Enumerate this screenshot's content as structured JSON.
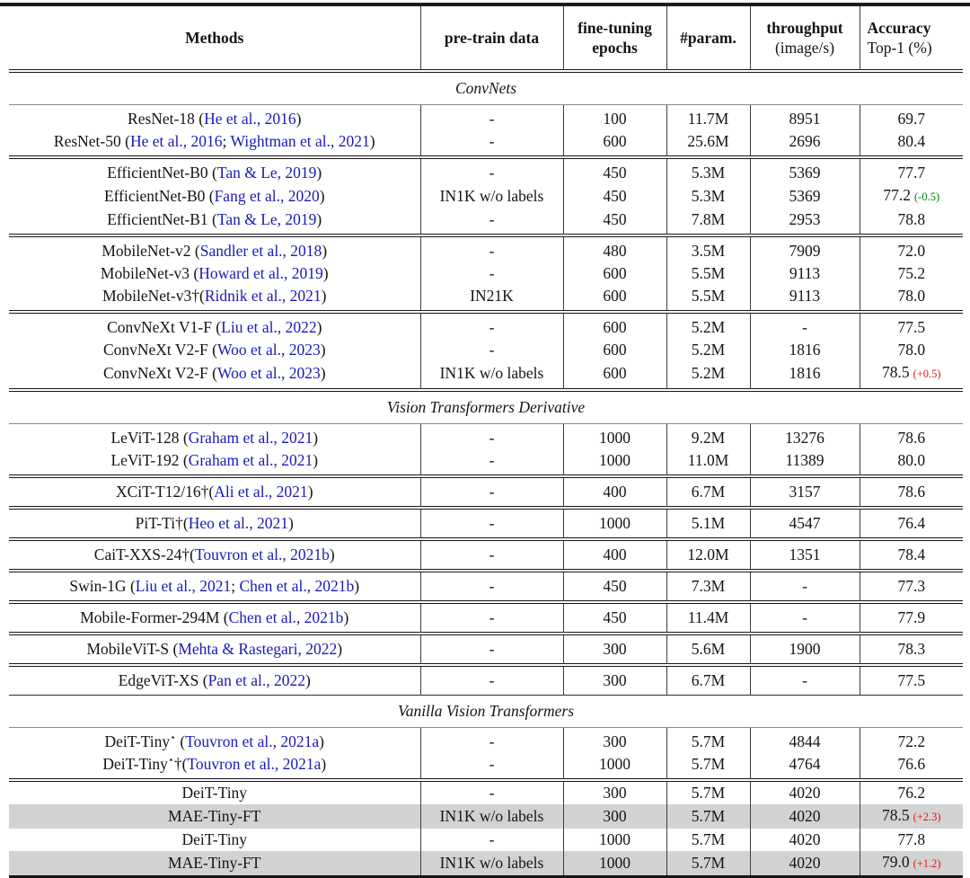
{
  "colors": {
    "citation": "#1a1ab8",
    "delta_green": "#008000",
    "delta_red": "#ee1111",
    "highlight": "#d2d2d2",
    "rule": "#151515"
  },
  "header": {
    "cols": [
      {
        "lines": [
          {
            "t": "Methods",
            "b": 1
          }
        ]
      },
      {
        "lines": [
          {
            "t": "pre-train data",
            "b": 1
          }
        ]
      },
      {
        "lines": [
          {
            "t": "fine-tuning",
            "b": 1
          },
          {
            "t": "epochs",
            "b": 1
          }
        ]
      },
      {
        "lines": [
          {
            "t": "#param.",
            "b": 1
          }
        ]
      },
      {
        "lines": [
          {
            "t": "throughput",
            "b": 1
          },
          {
            "t": "(image/s)",
            "b": 0
          }
        ]
      },
      {
        "lines": [
          {
            "t": "Accuracy",
            "b": 1
          },
          {
            "t": "Top-1 (%)",
            "b": 0
          }
        ],
        "align": "left"
      }
    ]
  },
  "sections": [
    {
      "title": "ConvNets",
      "rule_above": "double",
      "groups": [
        {
          "rows": [
            {
              "m": [
                {
                  "t": "ResNet-18 ("
                },
                {
                  "t": "He et al., 2016",
                  "b": 1
                },
                {
                  "t": ")"
                }
              ],
              "p": "-",
              "e": "100",
              "pa": "11.7M",
              "th": "8951",
              "a": "69.7"
            },
            {
              "m": [
                {
                  "t": "ResNet-50 ("
                },
                {
                  "t": "He et al., 2016",
                  "b": 1
                },
                {
                  "t": "; "
                },
                {
                  "t": "Wightman et al., 2021",
                  "b": 1
                },
                {
                  "t": ")"
                }
              ],
              "p": "-",
              "e": "600",
              "pa": "25.6M",
              "th": "2696",
              "a": "80.4"
            }
          ]
        },
        {
          "rows": [
            {
              "m": [
                {
                  "t": "EfficientNet-B0 ("
                },
                {
                  "t": "Tan & Le, 2019",
                  "b": 1
                },
                {
                  "t": ")"
                }
              ],
              "p": "-",
              "e": "450",
              "pa": "5.3M",
              "th": "5369",
              "a": "77.7"
            },
            {
              "m": [
                {
                  "t": "EfficientNet-B0 ("
                },
                {
                  "t": "Fang et al., 2020",
                  "b": 1
                },
                {
                  "t": ")"
                }
              ],
              "p": "IN1K w/o labels",
              "e": "450",
              "pa": "5.3M",
              "th": "5369",
              "a": "77.2",
              "d": {
                "t": "(-0.5)",
                "c": "green"
              }
            },
            {
              "m": [
                {
                  "t": "EfficientNet-B1 ("
                },
                {
                  "t": "Tan & Le, 2019",
                  "b": 1
                },
                {
                  "t": ")"
                }
              ],
              "p": "-",
              "e": "450",
              "pa": "7.8M",
              "th": "2953",
              "a": "78.8"
            }
          ]
        },
        {
          "rows": [
            {
              "m": [
                {
                  "t": "MobileNet-v2 ("
                },
                {
                  "t": "Sandler et al., 2018",
                  "b": 1
                },
                {
                  "t": ")"
                }
              ],
              "p": "-",
              "e": "480",
              "pa": "3.5M",
              "th": "7909",
              "a": "72.0"
            },
            {
              "m": [
                {
                  "t": "MobileNet-v3 ("
                },
                {
                  "t": "Howard et al., 2019",
                  "b": 1
                },
                {
                  "t": ")"
                }
              ],
              "p": "-",
              "e": "600",
              "pa": "5.5M",
              "th": "9113",
              "a": "75.2"
            },
            {
              "m": [
                {
                  "t": "MobileNet-v3†("
                },
                {
                  "t": "Ridnik et al., 2021",
                  "b": 1
                },
                {
                  "t": ")"
                }
              ],
              "p": "IN21K",
              "e": "600",
              "pa": "5.5M",
              "th": "9113",
              "a": "78.0"
            }
          ]
        },
        {
          "rows": [
            {
              "m": [
                {
                  "t": "ConvNeXt V1-F ("
                },
                {
                  "t": "Liu et al., 2022",
                  "b": 1
                },
                {
                  "t": ")"
                }
              ],
              "p": "-",
              "e": "600",
              "pa": "5.2M",
              "th": "-",
              "a": "77.5"
            },
            {
              "m": [
                {
                  "t": "ConvNeXt V2-F ("
                },
                {
                  "t": "Woo et al., 2023",
                  "b": 1
                },
                {
                  "t": ")"
                }
              ],
              "p": "-",
              "e": "600",
              "pa": "5.2M",
              "th": "1816",
              "a": "78.0"
            },
            {
              "m": [
                {
                  "t": "ConvNeXt V2-F ("
                },
                {
                  "t": "Woo et al., 2023",
                  "b": 1
                },
                {
                  "t": ")"
                }
              ],
              "p": "IN1K w/o labels",
              "e": "600",
              "pa": "5.2M",
              "th": "1816",
              "a": "78.5",
              "d": {
                "t": "(+0.5)",
                "c": "red"
              }
            }
          ]
        }
      ]
    },
    {
      "title": "Vision Transformers Derivative",
      "rule_above": "double",
      "groups": [
        {
          "rows": [
            {
              "m": [
                {
                  "t": "LeViT-128 ("
                },
                {
                  "t": "Graham et al., 2021",
                  "b": 1
                },
                {
                  "t": ")"
                }
              ],
              "p": "-",
              "e": "1000",
              "pa": "9.2M",
              "th": "13276",
              "a": "78.6"
            },
            {
              "m": [
                {
                  "t": "LeViT-192 ("
                },
                {
                  "t": "Graham et al., 2021",
                  "b": 1
                },
                {
                  "t": ")"
                }
              ],
              "p": "-",
              "e": "1000",
              "pa": "11.0M",
              "th": "11389",
              "a": "80.0"
            }
          ]
        },
        {
          "rows": [
            {
              "m": [
                {
                  "t": "XCiT-T12/16†("
                },
                {
                  "t": "Ali et al., 2021",
                  "b": 1
                },
                {
                  "t": ")"
                }
              ],
              "p": "-",
              "e": "400",
              "pa": "6.7M",
              "th": "3157",
              "a": "78.6"
            }
          ]
        },
        {
          "rows": [
            {
              "m": [
                {
                  "t": "PiT-Ti†("
                },
                {
                  "t": "Heo et al., 2021",
                  "b": 1
                },
                {
                  "t": ")"
                }
              ],
              "p": "-",
              "e": "1000",
              "pa": "5.1M",
              "th": "4547",
              "a": "76.4"
            }
          ]
        },
        {
          "rows": [
            {
              "m": [
                {
                  "t": "CaiT-XXS-24†("
                },
                {
                  "t": "Touvron et al., 2021b",
                  "b": 1
                },
                {
                  "t": ")"
                }
              ],
              "p": "-",
              "e": "400",
              "pa": "12.0M",
              "th": "1351",
              "a": "78.4"
            }
          ]
        },
        {
          "rows": [
            {
              "m": [
                {
                  "t": "Swin-1G ("
                },
                {
                  "t": "Liu et al., 2021",
                  "b": 1
                },
                {
                  "t": "; "
                },
                {
                  "t": "Chen et al., 2021b",
                  "b": 1
                },
                {
                  "t": ")"
                }
              ],
              "p": "-",
              "e": "450",
              "pa": "7.3M",
              "th": "-",
              "a": "77.3"
            }
          ]
        },
        {
          "rows": [
            {
              "m": [
                {
                  "t": "Mobile-Former-294M ("
                },
                {
                  "t": "Chen et al., 2021b",
                  "b": 1
                },
                {
                  "t": ")"
                }
              ],
              "p": "-",
              "e": "450",
              "pa": "11.4M",
              "th": "-",
              "a": "77.9"
            }
          ]
        },
        {
          "rows": [
            {
              "m": [
                {
                  "t": "MobileViT-S ("
                },
                {
                  "t": "Mehta & Rastegari, 2022",
                  "b": 1
                },
                {
                  "t": ")"
                }
              ],
              "p": "-",
              "e": "300",
              "pa": "5.6M",
              "th": "1900",
              "a": "78.3"
            }
          ]
        },
        {
          "rows": [
            {
              "m": [
                {
                  "t": "EdgeViT-XS ("
                },
                {
                  "t": "Pan et al., 2022",
                  "b": 1
                },
                {
                  "t": ")"
                }
              ],
              "p": "-",
              "e": "300",
              "pa": "6.7M",
              "th": "-",
              "a": "77.5"
            }
          ]
        }
      ]
    },
    {
      "title": "Vanilla Vision Transformers",
      "rule_above": "single",
      "groups": [
        {
          "rows": [
            {
              "m": [
                {
                  "t": "DeiT-Tiny"
                },
                {
                  "t": "⋆",
                  "sup": 1
                },
                {
                  "t": " ("
                },
                {
                  "t": "Touvron et al., 2021a",
                  "b": 1
                },
                {
                  "t": ")"
                }
              ],
              "p": "-",
              "e": "300",
              "pa": "5.7M",
              "th": "4844",
              "a": "72.2"
            },
            {
              "m": [
                {
                  "t": "DeiT-Tiny"
                },
                {
                  "t": "⋆",
                  "sup": 1
                },
                {
                  "t": "†("
                },
                {
                  "t": "Touvron et al., 2021a",
                  "b": 1
                },
                {
                  "t": ")"
                }
              ],
              "p": "-",
              "e": "1000",
              "pa": "5.7M",
              "th": "4764",
              "a": "76.6"
            }
          ]
        },
        {
          "compact": 1,
          "rows": [
            {
              "m": [
                {
                  "t": "DeiT-Tiny"
                }
              ],
              "p": "-",
              "e": "300",
              "pa": "5.7M",
              "th": "4020",
              "a": "76.2"
            },
            {
              "hl": 1,
              "m": [
                {
                  "t": "MAE-Tiny-FT"
                }
              ],
              "p": "IN1K w/o labels",
              "e": "300",
              "pa": "5.7M",
              "th": "4020",
              "a": "78.5",
              "d": {
                "t": "(+2.3)",
                "c": "red"
              }
            },
            {
              "m": [
                {
                  "t": "DeiT-Tiny"
                }
              ],
              "p": "-",
              "e": "1000",
              "pa": "5.7M",
              "th": "4020",
              "a": "77.8"
            },
            {
              "hl": 1,
              "m": [
                {
                  "t": "MAE-Tiny-FT"
                }
              ],
              "p": "IN1K w/o labels",
              "e": "1000",
              "pa": "5.7M",
              "th": "4020",
              "a": "79.0",
              "d": {
                "t": "(+1.2)",
                "c": "red"
              }
            }
          ]
        }
      ]
    }
  ]
}
